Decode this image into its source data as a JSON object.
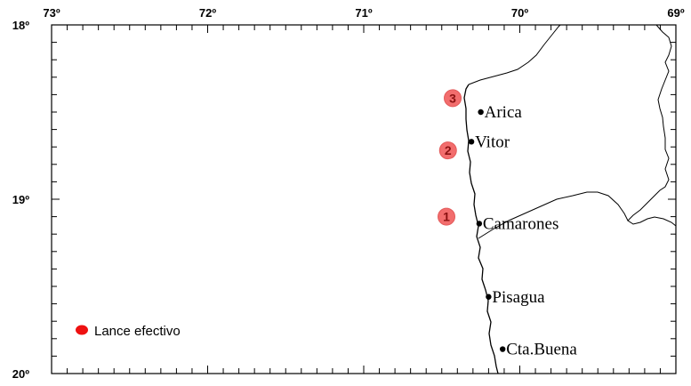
{
  "map": {
    "lon_labels": [
      {
        "lon": 73,
        "text": "73º"
      },
      {
        "lon": 72,
        "text": "72º"
      },
      {
        "lon": 71,
        "text": "71º"
      },
      {
        "lon": 70,
        "text": "70º"
      },
      {
        "lon": 69,
        "text": "69º"
      }
    ],
    "lat_labels": [
      {
        "lat": 18,
        "text": "18º"
      },
      {
        "lat": 19,
        "text": "19º"
      },
      {
        "lat": 20,
        "text": "20º"
      }
    ],
    "towns": [
      {
        "name": "Arica",
        "lon": 70.25,
        "lat": 18.5
      },
      {
        "name": "Vitor",
        "lon": 70.31,
        "lat": 18.67
      },
      {
        "name": "Camarones",
        "lon": 70.26,
        "lat": 19.14
      },
      {
        "name": "Pisagua",
        "lon": 70.2,
        "lat": 19.56
      },
      {
        "name": "Cta.Buena",
        "lon": 70.11,
        "lat": 19.86
      }
    ],
    "stations": [
      {
        "label": "1",
        "lon": 70.47,
        "lat": 19.1
      },
      {
        "label": "2",
        "lon": 70.46,
        "lat": 18.72
      },
      {
        "label": "3",
        "lon": 70.43,
        "lat": 18.42
      }
    ],
    "legend": {
      "label": "Lance efectivo"
    },
    "colors": {
      "station": "#f26d6d",
      "legend_dot": "#ee1111",
      "line": "#000000"
    }
  }
}
